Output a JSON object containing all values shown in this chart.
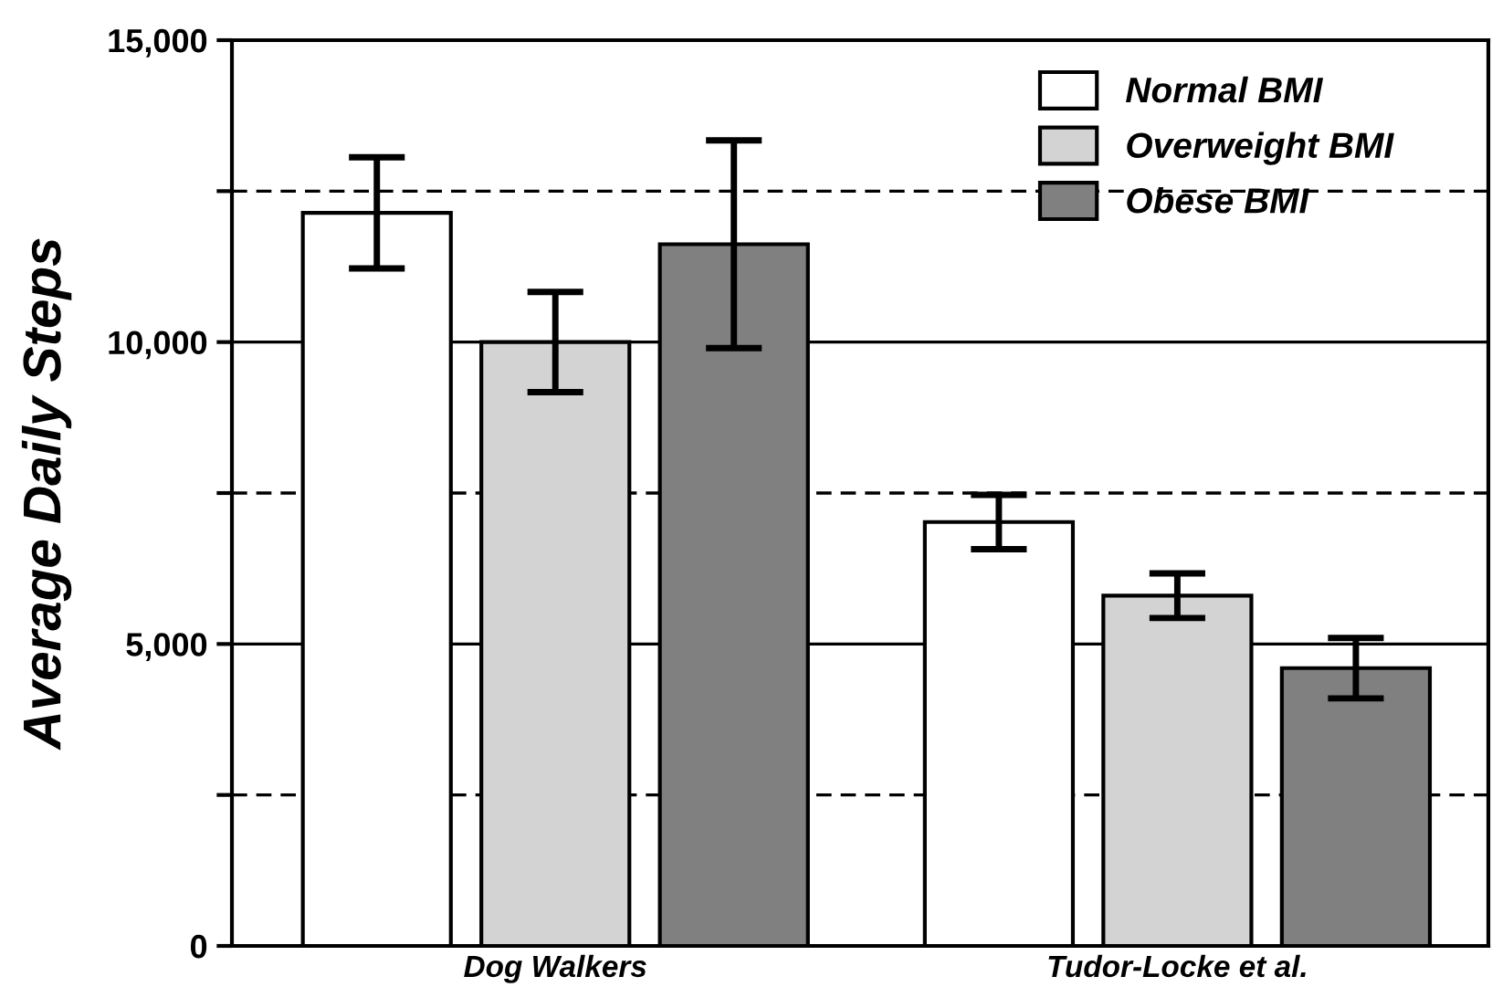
{
  "chart_data": {
    "type": "bar",
    "ylabel": "Average Daily Steps",
    "categories": [
      "Dog Walkers",
      "Tudor-Locke et al."
    ],
    "series": [
      {
        "name": "Normal BMI",
        "color": "#ffffff",
        "values": [
          12140,
          7020
        ],
        "errors": [
          920,
          450
        ]
      },
      {
        "name": "Overweight BMI",
        "color": "#d3d3d3",
        "values": [
          10000,
          5800
        ],
        "errors": [
          830,
          370
        ]
      },
      {
        "name": "Obese BMI",
        "color": "#808080",
        "values": [
          11620,
          4600
        ],
        "errors": [
          1720,
          500
        ]
      }
    ],
    "ylim": [
      0,
      15000
    ],
    "yticks": [
      {
        "value": 0,
        "label": "0"
      },
      {
        "value": 2500,
        "label": null
      },
      {
        "value": 5000,
        "label": "5,000"
      },
      {
        "value": 7500,
        "label": null
      },
      {
        "value": 10000,
        "label": "10,000"
      },
      {
        "value": 12500,
        "label": null
      },
      {
        "value": 15000,
        "label": "15,000"
      }
    ],
    "grid": "y",
    "legend": "top right"
  }
}
